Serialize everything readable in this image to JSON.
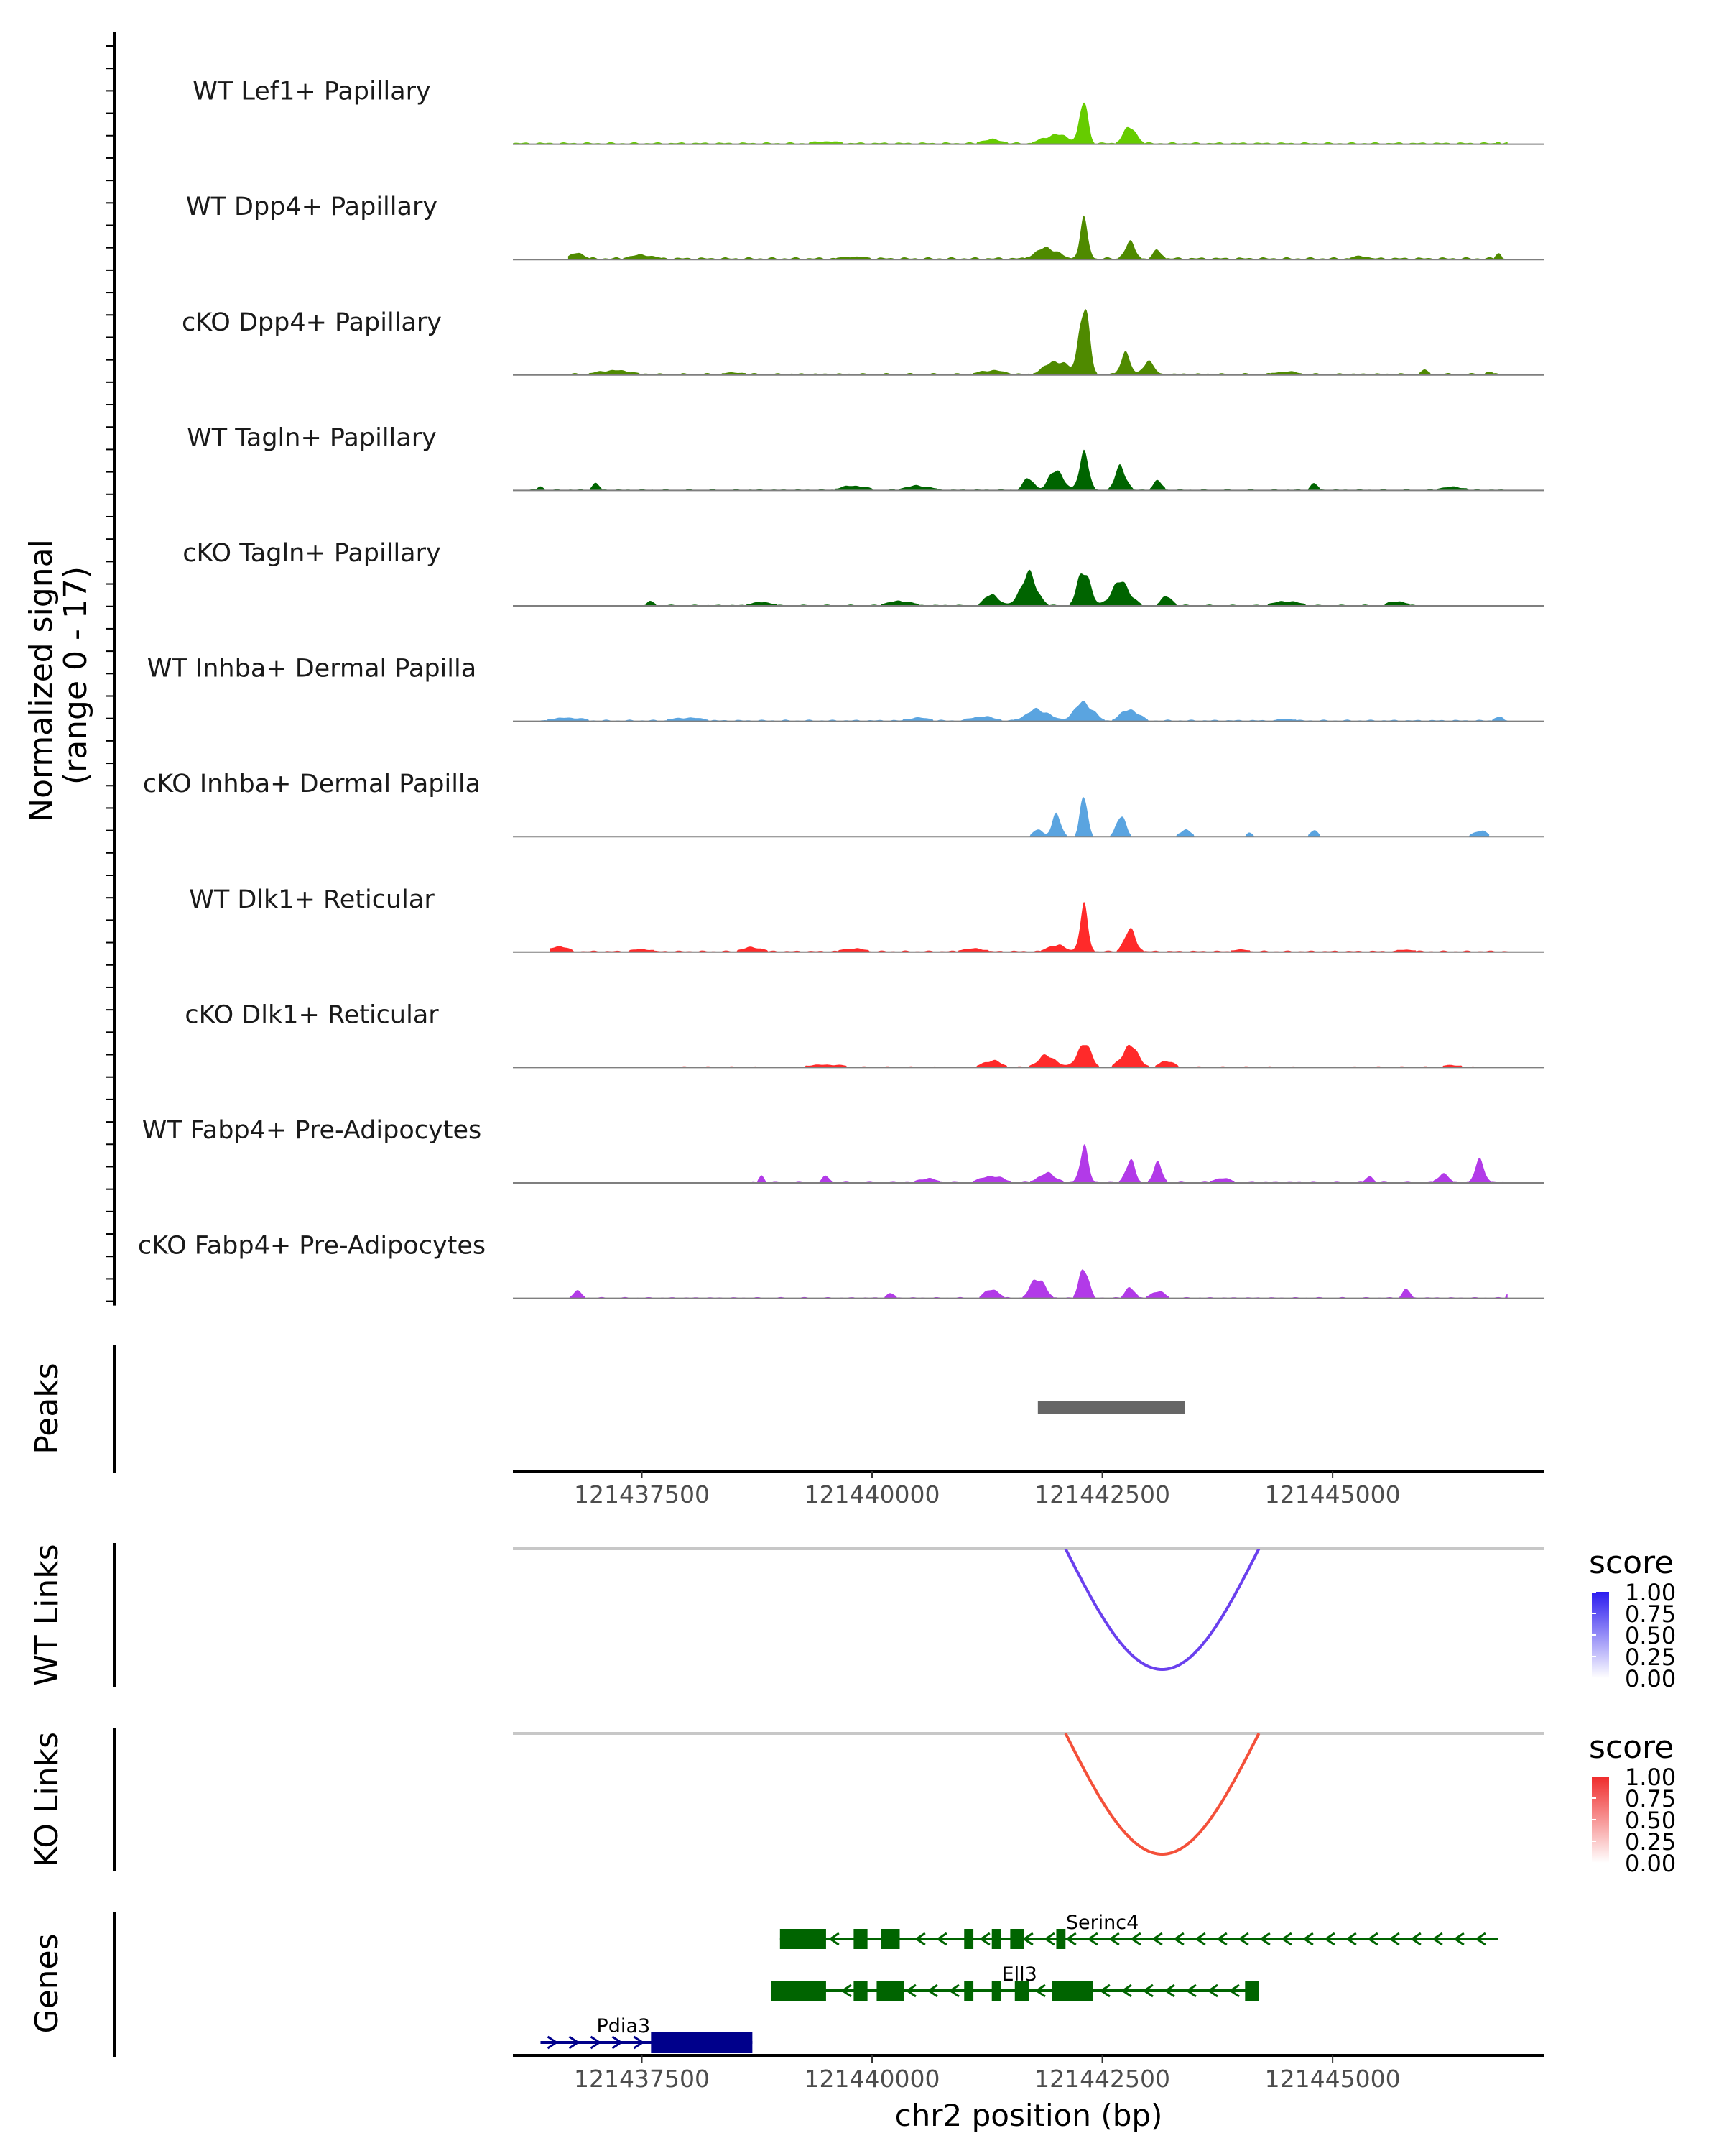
{
  "chart_data": {
    "type": "area",
    "title": "",
    "region": {
      "chrom": "chr2",
      "start": 121436100,
      "end": 121447300
    },
    "xlabel": "chr2 position (bp)",
    "xticks": [
      121437500,
      121440000,
      121442500,
      121445000
    ],
    "xtick_labels": [
      "121437500",
      "121440000",
      "121442500",
      "121445000"
    ],
    "ylabel": "Normalized signal",
    "ylabel2": "(range 0 - 17)",
    "ylim": [
      0,
      17
    ],
    "tracks": [
      {
        "name": "WT Lef1+ Papillary",
        "color": "#66cc00",
        "peaks": [
          [
            121442300,
            17,
            90
          ],
          [
            121442800,
            7,
            150
          ],
          [
            121442000,
            4,
            300
          ],
          [
            121441300,
            2,
            250
          ],
          [
            121439500,
            1.2,
            400
          ],
          [
            121437500,
            0.7,
            500
          ],
          [
            121446800,
            1,
            60
          ]
        ],
        "base": 0.5,
        "range": [
          121436100,
          121446900
        ]
      },
      {
        "name": "WT Dpp4+ Papillary",
        "color": "#4f8a00",
        "peaks": [
          [
            121442300,
            16,
            90
          ],
          [
            121442800,
            7,
            120
          ],
          [
            121441900,
            5,
            250
          ],
          [
            121443100,
            4,
            100
          ],
          [
            121436800,
            3,
            150
          ],
          [
            121437500,
            2,
            300
          ],
          [
            121439800,
            1.2,
            400
          ],
          [
            121445300,
            1.5,
            200
          ],
          [
            121446800,
            3,
            60
          ]
        ],
        "base": 0.6,
        "range": [
          121436700,
          121446900
        ]
      },
      {
        "name": "cKO Dpp4+ Papillary",
        "color": "#4f8a00",
        "peaks": [
          [
            121442300,
            29,
            110
          ],
          [
            121442750,
            10,
            100
          ],
          [
            121443000,
            6,
            120
          ],
          [
            121442000,
            6,
            250
          ],
          [
            121441300,
            2,
            300
          ],
          [
            121437200,
            2,
            400
          ],
          [
            121438500,
            1,
            400
          ],
          [
            121444500,
            1.5,
            300
          ],
          [
            121446000,
            2,
            100
          ],
          [
            121446700,
            1.5,
            80
          ]
        ],
        "base": 0.5,
        "range": [
          121436700,
          121446900
        ]
      },
      {
        "name": "WT Tagln+ Papillary",
        "color": "#006400",
        "peaks": [
          [
            121442300,
            17,
            100
          ],
          [
            121442700,
            10,
            120
          ],
          [
            121442000,
            9,
            150
          ],
          [
            121441700,
            5,
            120
          ],
          [
            121443100,
            4,
            100
          ],
          [
            121436400,
            2,
            60
          ],
          [
            121437000,
            3,
            80
          ],
          [
            121439800,
            2,
            300
          ],
          [
            121440500,
            2,
            300
          ],
          [
            121444800,
            3,
            80
          ],
          [
            121446300,
            1.5,
            300
          ]
        ],
        "base": 0.3,
        "range": [
          121436100,
          121446900
        ]
      },
      {
        "name": "cKO Tagln+ Papillary",
        "color": "#006400",
        "peaks": [
          [
            121442300,
            16,
            130
          ],
          [
            121441700,
            13,
            180
          ],
          [
            121442700,
            10,
            200
          ],
          [
            121441300,
            5,
            150
          ],
          [
            121443200,
            4,
            120
          ],
          [
            121437600,
            2,
            80
          ],
          [
            121438800,
            1.5,
            300
          ],
          [
            121440300,
            2,
            300
          ],
          [
            121444500,
            2,
            300
          ],
          [
            121445700,
            2,
            200
          ]
        ],
        "base": 0.3,
        "range": [
          121437400,
          121446000
        ]
      },
      {
        "name": "WT Inhba+ Dermal Papilla",
        "color": "#5aa4e0",
        "peaks": [
          [
            121442300,
            8,
            200
          ],
          [
            121441800,
            5,
            250
          ],
          [
            121442800,
            5,
            200
          ],
          [
            121441200,
            2,
            300
          ],
          [
            121436700,
            1.5,
            400
          ],
          [
            121438000,
            1.5,
            400
          ],
          [
            121440500,
            1.5,
            300
          ],
          [
            121444500,
            1,
            300
          ],
          [
            121446800,
            2,
            100
          ]
        ],
        "base": 0.4,
        "range": [
          121436400,
          121446900
        ]
      },
      {
        "name": "cKO Inhba+ Dermal Papilla",
        "color": "#5aa4e0",
        "peaks": [
          [
            121442300,
            17,
            80
          ],
          [
            121442000,
            9,
            100
          ],
          [
            121442700,
            9,
            100
          ],
          [
            121441300,
            2,
            60
          ],
          [
            121441800,
            3,
            100
          ],
          [
            121443400,
            3,
            120
          ],
          [
            121444100,
            2,
            60
          ],
          [
            121444800,
            3,
            80
          ],
          [
            121446600,
            2.5,
            150
          ]
        ],
        "base": 0,
        "range": [
          121441400,
          121446700
        ]
      },
      {
        "name": "WT Dlk1+ Reticular",
        "color": "#ff2a2a",
        "peaks": [
          [
            121442300,
            18,
            90
          ],
          [
            121442800,
            9,
            130
          ],
          [
            121442000,
            3,
            200
          ],
          [
            121436600,
            2.5,
            200
          ],
          [
            121437500,
            1.2,
            300
          ],
          [
            121438700,
            2,
            250
          ],
          [
            121439800,
            1.5,
            300
          ],
          [
            121441100,
            1.5,
            300
          ],
          [
            121444000,
            1,
            300
          ],
          [
            121445800,
            1,
            300
          ]
        ],
        "base": 0.4,
        "range": [
          121436500,
          121446900
        ]
      },
      {
        "name": "cKO Dlk1+ Reticular",
        "color": "#ff2a2a",
        "peaks": [
          [
            121442300,
            10,
            150
          ],
          [
            121442800,
            9,
            180
          ],
          [
            121441900,
            5,
            200
          ],
          [
            121441300,
            3,
            200
          ],
          [
            121443200,
            3,
            150
          ],
          [
            121439500,
            1.2,
            500
          ],
          [
            121446300,
            1,
            300
          ]
        ],
        "base": 0.3,
        "range": [
          121437900,
          121446900
        ]
      },
      {
        "name": "WT Fabp4+ Pre-Adipocytes",
        "color": "#b23ae8",
        "peaks": [
          [
            121442300,
            16,
            90
          ],
          [
            121442800,
            10,
            100
          ],
          [
            121443100,
            8,
            100
          ],
          [
            121441900,
            4,
            200
          ],
          [
            121441300,
            3,
            250
          ],
          [
            121446600,
            10,
            100
          ],
          [
            121446200,
            4,
            120
          ],
          [
            121438800,
            3,
            60
          ],
          [
            121439500,
            3,
            80
          ],
          [
            121440600,
            2,
            200
          ],
          [
            121445400,
            3,
            80
          ],
          [
            121443800,
            2,
            200
          ]
        ],
        "base": 0.3,
        "range": [
          121438700,
          121446900
        ]
      },
      {
        "name": "cKO Fabp4+ Pre-Adipocytes",
        "color": "#b23ae8",
        "peaks": [
          [
            121442300,
            14,
            100
          ],
          [
            121441800,
            9,
            150
          ],
          [
            121441300,
            4,
            150
          ],
          [
            121442800,
            5,
            100
          ],
          [
            121443100,
            3,
            150
          ],
          [
            121436800,
            3,
            100
          ],
          [
            121440200,
            2,
            100
          ],
          [
            121445800,
            4,
            80
          ],
          [
            121446900,
            2,
            40
          ]
        ],
        "base": 0.3,
        "range": [
          121436700,
          121446900
        ]
      }
    ],
    "peaks_track": {
      "label": "Peaks",
      "ranges": [
        [
          121441800,
          121443400
        ]
      ],
      "color": "#666666"
    },
    "links": [
      {
        "label": "WT Links",
        "from": 121442100,
        "to": 121444200,
        "score": 0.8,
        "color": "#6a40ee",
        "legend": {
          "title": "score",
          "labels": [
            "1.00",
            "0.75",
            "0.50",
            "0.25",
            "0.00"
          ],
          "high": "#2b1bef",
          "low": "#ffffff"
        }
      },
      {
        "label": "KO Links",
        "from": 121442100,
        "to": 121444200,
        "score": 0.8,
        "color": "#f4503a",
        "legend": {
          "title": "score",
          "labels": [
            "1.00",
            "0.75",
            "0.50",
            "0.25",
            "0.00"
          ],
          "high": "#ef2b2b",
          "low": "#ffffff"
        }
      }
    ],
    "genes": {
      "label": "Genes",
      "items": [
        {
          "name": "Serinc4",
          "start": 121439000,
          "end": 121446800,
          "strand": "-",
          "color": "#006400",
          "row": 0,
          "exons": [
            [
              121439000,
              121439500
            ],
            [
              121439800,
              121439950
            ],
            [
              121440100,
              121440300
            ],
            [
              121441000,
              121441100
            ],
            [
              121441300,
              121441400
            ],
            [
              121441500,
              121441650
            ],
            [
              121442000,
              121442100
            ]
          ]
        },
        {
          "name": "Ell3",
          "start": 121438900,
          "end": 121444200,
          "strand": "-",
          "color": "#006400",
          "row": 1,
          "exons": [
            [
              121438900,
              121439500
            ],
            [
              121439800,
              121439950
            ],
            [
              121440050,
              121440350
            ],
            [
              121441000,
              121441100
            ],
            [
              121441300,
              121441400
            ],
            [
              121441550,
              121441700
            ],
            [
              121441950,
              121442400
            ],
            [
              121444050,
              121444200
            ]
          ]
        },
        {
          "name": "Pdia3",
          "start": 121436400,
          "end": 121438700,
          "strand": "+",
          "color": "#00008b",
          "row": 2,
          "exons": [
            [
              121437600,
              121438700
            ]
          ]
        }
      ]
    }
  }
}
